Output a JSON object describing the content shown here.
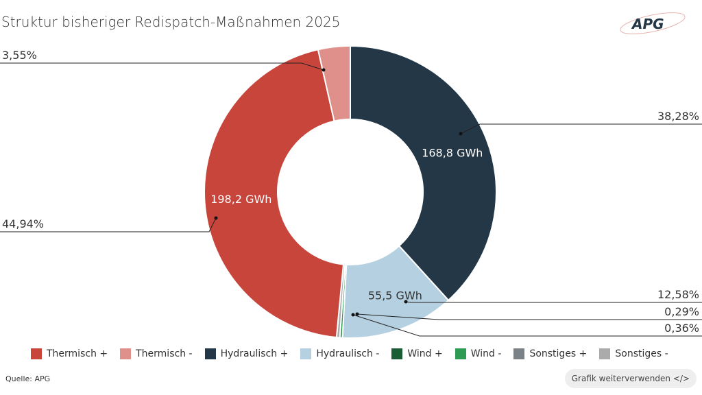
{
  "title": "Struktur bisheriger Redispatch-Maßnahmen 2025",
  "logo_text": "APG",
  "source": "Quelle: APG",
  "reuse_button": "Grafik weiterverwenden </>",
  "chart_data": {
    "type": "pie",
    "donut": true,
    "title": "Struktur bisheriger Redispatch-Maßnahmen 2025",
    "legend_position": "bottom",
    "legend": [
      {
        "name": "Thermisch +",
        "color": "#c8453c"
      },
      {
        "name": "Thermisch -",
        "color": "#e0908a"
      },
      {
        "name": "Hydraulisch +",
        "color": "#243746"
      },
      {
        "name": "Hydraulisch -",
        "color": "#b5d0e0"
      },
      {
        "name": "Wind +",
        "color": "#1b5e35"
      },
      {
        "name": "Wind -",
        "color": "#2e9b55"
      },
      {
        "name": "Sonstiges +",
        "color": "#7a8288"
      },
      {
        "name": "Sonstiges -",
        "color": "#ababab"
      }
    ],
    "slices": [
      {
        "name": "Hydraulisch +",
        "percent": 38.28,
        "percent_label": "38,28%",
        "value_label": "168,8 GWh",
        "color": "#243746"
      },
      {
        "name": "Hydraulisch -",
        "percent": 12.58,
        "percent_label": "12,58%",
        "value_label": "55,5 GWh",
        "color": "#b5d0e0"
      },
      {
        "name": "Wind -",
        "percent": 0.29,
        "percent_label": "0,29%",
        "value_label": "",
        "color": "#2e9b55"
      },
      {
        "name": "Sonstiges -",
        "percent": 0.36,
        "percent_label": "0,36%",
        "value_label": "",
        "color": "#ababab"
      },
      {
        "name": "Thermisch +",
        "percent": 44.94,
        "percent_label": "44,94%",
        "value_label": "198,2 GWh",
        "color": "#c8453c"
      },
      {
        "name": "Thermisch -",
        "percent": 3.55,
        "percent_label": "3,55%",
        "value_label": "",
        "color": "#e0908a"
      }
    ]
  }
}
